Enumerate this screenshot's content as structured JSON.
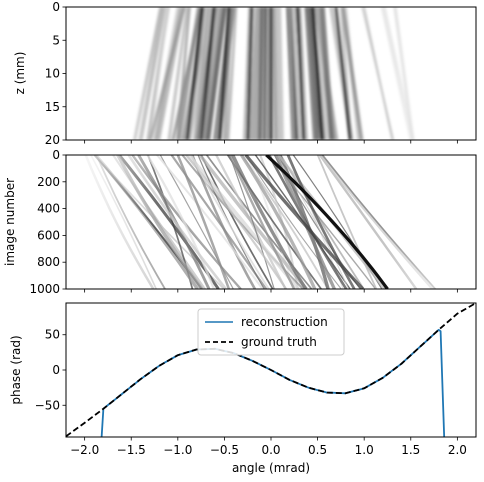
{
  "chart_data": [
    {
      "type": "heatmap",
      "ylabel": "z (mm)",
      "yticks": [
        0,
        5,
        10,
        15,
        20
      ],
      "ylim": [
        0,
        20
      ],
      "y_inverted": true,
      "xlim": [
        -2.2,
        2.2
      ],
      "colormap": "gray_r",
      "summary": "vertical striations spreading outward with z"
    },
    {
      "type": "heatmap",
      "ylabel": "image number",
      "yticks": [
        0,
        200,
        400,
        600,
        800,
        1000
      ],
      "ylim": [
        0,
        1000
      ],
      "y_inverted": true,
      "xlim": [
        -2.2,
        2.2
      ],
      "colormap": "gray_r",
      "summary": "diagonal streaks drifting toward positive angle with image number"
    },
    {
      "type": "line",
      "xlabel": "angle (mrad)",
      "ylabel": "phase (rad)",
      "xlim": [
        -2.2,
        2.2
      ],
      "ylim": [
        -95,
        95
      ],
      "xticks": [
        -2.0,
        -1.5,
        -1.0,
        -0.5,
        0.0,
        0.5,
        1.0,
        1.5,
        2.0
      ],
      "xtick_labels": [
        "−2.0",
        "−1.5",
        "−1.0",
        "−0.5",
        "0.0",
        "0.5",
        "1.0",
        "1.5",
        "2.0"
      ],
      "yticks": [
        -50,
        0,
        50
      ],
      "ytick_labels": [
        "−50",
        "0",
        "50"
      ],
      "legend_position": "top-center",
      "series": [
        {
          "name": "reconstruction",
          "color": "#1f77b4",
          "style": "solid",
          "x": [
            -1.82,
            -1.8,
            -1.6,
            -1.4,
            -1.2,
            -1.0,
            -0.8,
            -0.6,
            -0.4,
            -0.2,
            0.0,
            0.2,
            0.4,
            0.6,
            0.8,
            1.0,
            1.2,
            1.4,
            1.6,
            1.8,
            1.82,
            1.86
          ],
          "y": [
            -100,
            -57.5,
            -31.6,
            -8.4,
            10.8,
            24.4,
            30.6,
            28.3,
            16.6,
            -2.2,
            -25.0,
            -46.6,
            -63.4,
            -70.0,
            -66.8,
            -47.0,
            -7.0,
            59.0,
            151.0,
            260.0,
            55.0,
            -100
          ]
        },
        {
          "name": "ground truth",
          "color": "#000000",
          "style": "dashed",
          "x": [
            -2.2,
            -2.0,
            -1.8,
            -1.6,
            -1.4,
            -1.2,
            -1.0,
            -0.8,
            -0.6,
            -0.4,
            -0.2,
            0.0,
            0.2,
            0.4,
            0.6,
            0.8,
            1.0,
            1.2,
            1.4,
            1.6,
            1.8,
            2.0,
            2.2
          ],
          "y": [
            -94,
            -75,
            -55,
            -34,
            -13,
            6,
            21,
            29,
            30,
            24,
            13,
            0,
            -14,
            -25,
            -32,
            -33,
            -26,
            -11,
            9,
            33,
            57,
            80,
            95
          ]
        }
      ]
    }
  ]
}
